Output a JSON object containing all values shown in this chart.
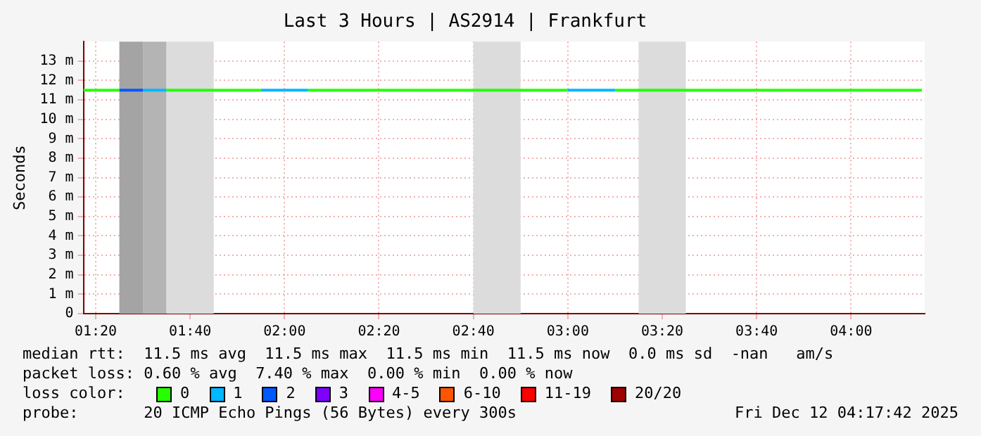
{
  "chart_data": {
    "type": "line",
    "title": "Last 3 Hours | AS2914 | Frankfurt",
    "ylabel": "Seconds",
    "legend_title": "loss color:",
    "legend": "bottom",
    "grid": true,
    "marker": "none",
    "line_style": "solid",
    "xlim": [
      1.29,
      4.26
    ],
    "xticks": [
      {
        "value": 1.3333,
        "label": "01:20"
      },
      {
        "value": 1.6667,
        "label": "01:40"
      },
      {
        "value": 2,
        "label": "02:00"
      },
      {
        "value": 2.3333,
        "label": "02:20"
      },
      {
        "value": 2.6667,
        "label": "02:40"
      },
      {
        "value": 3,
        "label": "03:00"
      },
      {
        "value": 3.3333,
        "label": "03:20"
      },
      {
        "value": 3.6667,
        "label": "03:40"
      },
      {
        "value": 4,
        "label": "04:00"
      }
    ],
    "ylim": [
      0,
      14
    ],
    "yticks": [
      {
        "value": 0,
        "label": "0"
      },
      {
        "value": 1,
        "label": "1 m"
      },
      {
        "value": 2,
        "label": "2 m"
      },
      {
        "value": 3,
        "label": "3 m"
      },
      {
        "value": 4,
        "label": "4 m"
      },
      {
        "value": 5,
        "label": "5 m"
      },
      {
        "value": 6,
        "label": "6 m"
      },
      {
        "value": 7,
        "label": "7 m"
      },
      {
        "value": 8,
        "label": "8 m"
      },
      {
        "value": 9,
        "label": "9 m"
      },
      {
        "value": 10,
        "label": "10 m"
      },
      {
        "value": 11,
        "label": "11 m"
      },
      {
        "value": 12,
        "label": "12 m"
      },
      {
        "value": 13,
        "label": "13 m"
      }
    ],
    "series": [
      {
        "name": "0",
        "color": "#26ff00",
        "x": [
          1.29,
          1.4167,
          1.5,
          1.5833,
          1.75,
          1.9167,
          2.0,
          2.0833,
          2.5,
          3.0,
          3.0833,
          3.1667,
          3.75,
          4.25
        ],
        "values": [
          11.5,
          11.5,
          null,
          11.5,
          11.5,
          11.5,
          null,
          11.5,
          11.5,
          11.5,
          null,
          11.5,
          11.5,
          11.5
        ]
      },
      {
        "name": "1",
        "color": "#00b8ff",
        "x": [
          1.5,
          1.5833,
          1.75,
          1.9167,
          2.0833,
          2.5,
          3.0,
          3.1667
        ],
        "values": [
          11.5,
          11.5,
          null,
          11.5,
          11.5,
          null,
          11.5,
          11.5
        ]
      },
      {
        "name": "2",
        "color": "#0059ff",
        "x": [
          1.4167,
          1.5
        ],
        "values": [
          11.5,
          11.5
        ]
      },
      {
        "name": "3",
        "color": "#7e00ff"
      },
      {
        "name": "4-5",
        "color": "#ff00ff"
      },
      {
        "name": "6-10",
        "color": "#ff5500"
      },
      {
        "name": "11-19",
        "color": "#ff0000"
      },
      {
        "name": "20/20",
        "color": "#a10000"
      }
    ],
    "bands": [
      {
        "axis": "x",
        "from": 1.4167,
        "to": 1.5,
        "color": "#a4a4a4"
      },
      {
        "axis": "x",
        "from": 1.5,
        "to": 1.5833,
        "color": "#b4b4b4"
      },
      {
        "axis": "x",
        "from": 1.5833,
        "to": 1.75,
        "color": "#dcdcdc"
      },
      {
        "axis": "x",
        "from": 2.6667,
        "to": 2.8333,
        "color": "#dcdcdc"
      },
      {
        "axis": "x",
        "from": 3.25,
        "to": 3.4167,
        "color": "#dcdcdc"
      }
    ],
    "annotations": [
      "median rtt:  11.5 ms avg  11.5 ms max  11.5 ms min  11.5 ms now  0.0 ms sd  -nan   am/s",
      "packet loss: 0.60 % avg  7.40 % max  0.00 % min  0.00 % now",
      "probe:       20 ICMP Echo Pings (56 Bytes) every 300s",
      "Fri Dec 12 04:17:42 2025"
    ]
  }
}
